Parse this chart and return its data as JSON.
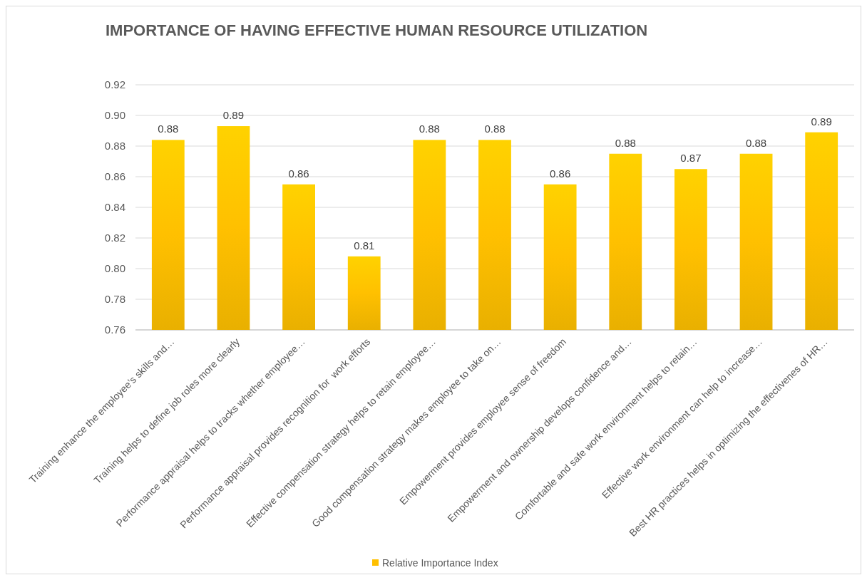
{
  "chart_data": {
    "type": "bar",
    "title": "IMPORTANCE OF HAVING EFFECTIVE HUMAN RESOURCE UTILIZATION",
    "categories": [
      "Training enhance the employee’s skills and…",
      "Training helps to define job roles more clearly",
      "Performance appraisal helps to tracks whether employee…",
      "Performance appraisal provides recognition for  work efforts",
      "Effective compensation strategy helps to retain employee…",
      "Good compensation strategy makes employee to take on…",
      "Empowerment provides employee sense of freedom",
      "Empowerment and ownership develops confidence and…",
      "Comfortable and safe work environment helps to retain…",
      "Effective work environment can help to increase…",
      "Best HR practices helps in optimizing the effectivenes of HR…"
    ],
    "series": [
      {
        "name": "Relative Importance Index",
        "color": "#ffc000",
        "values": [
          0.884,
          0.893,
          0.855,
          0.808,
          0.884,
          0.884,
          0.855,
          0.875,
          0.865,
          0.875,
          0.889
        ],
        "value_labels": [
          "0.88",
          "0.89",
          "0.86",
          "0.81",
          "0.88",
          "0.88",
          "0.86",
          "0.88",
          "0.87",
          "0.88",
          "0.89"
        ]
      }
    ],
    "ylim": [
      0.76,
      0.92
    ],
    "yticks": [
      {
        "value": 0.76,
        "label": "0.76"
      },
      {
        "value": 0.78,
        "label": "0.78"
      },
      {
        "value": 0.8,
        "label": "0.80"
      },
      {
        "value": 0.82,
        "label": "0.82"
      },
      {
        "value": 0.84,
        "label": "0.84"
      },
      {
        "value": 0.86,
        "label": "0.86"
      },
      {
        "value": 0.88,
        "label": "0.88"
      },
      {
        "value": 0.9,
        "label": "0.90"
      },
      {
        "value": 0.92,
        "label": "0.92"
      }
    ],
    "grid": "y",
    "legend": "bottom"
  }
}
